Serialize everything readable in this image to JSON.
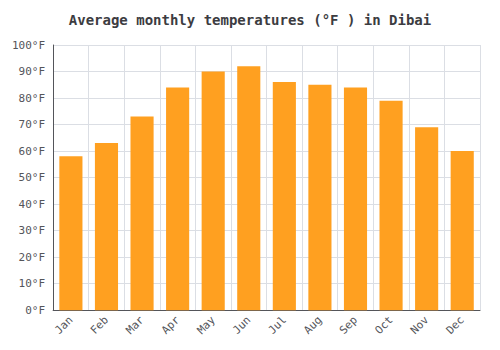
{
  "chart_data": {
    "type": "bar",
    "title": "Average monthly temperatures (°F ) in Dibai",
    "categories": [
      "Jan",
      "Feb",
      "Mar",
      "Apr",
      "May",
      "Jun",
      "Jul",
      "Aug",
      "Sep",
      "Oct",
      "Nov",
      "Dec"
    ],
    "values": [
      58,
      63,
      73,
      84,
      90,
      92,
      86,
      85,
      84,
      79,
      69,
      60
    ],
    "color": "#FFA020",
    "ylim": [
      0,
      100
    ],
    "yticks": [
      {
        "value": 0,
        "label": "0°F"
      },
      {
        "value": 10,
        "label": "10°F"
      },
      {
        "value": 20,
        "label": "20°F"
      },
      {
        "value": 30,
        "label": "30°F"
      },
      {
        "value": 40,
        "label": "40°F"
      },
      {
        "value": 50,
        "label": "50°F"
      },
      {
        "value": 60,
        "label": "60°F"
      },
      {
        "value": 70,
        "label": "70°F"
      },
      {
        "value": 80,
        "label": "80°F"
      },
      {
        "value": 90,
        "label": "90°F"
      },
      {
        "value": 100,
        "label": "100°F"
      }
    ],
    "grid": true
  }
}
